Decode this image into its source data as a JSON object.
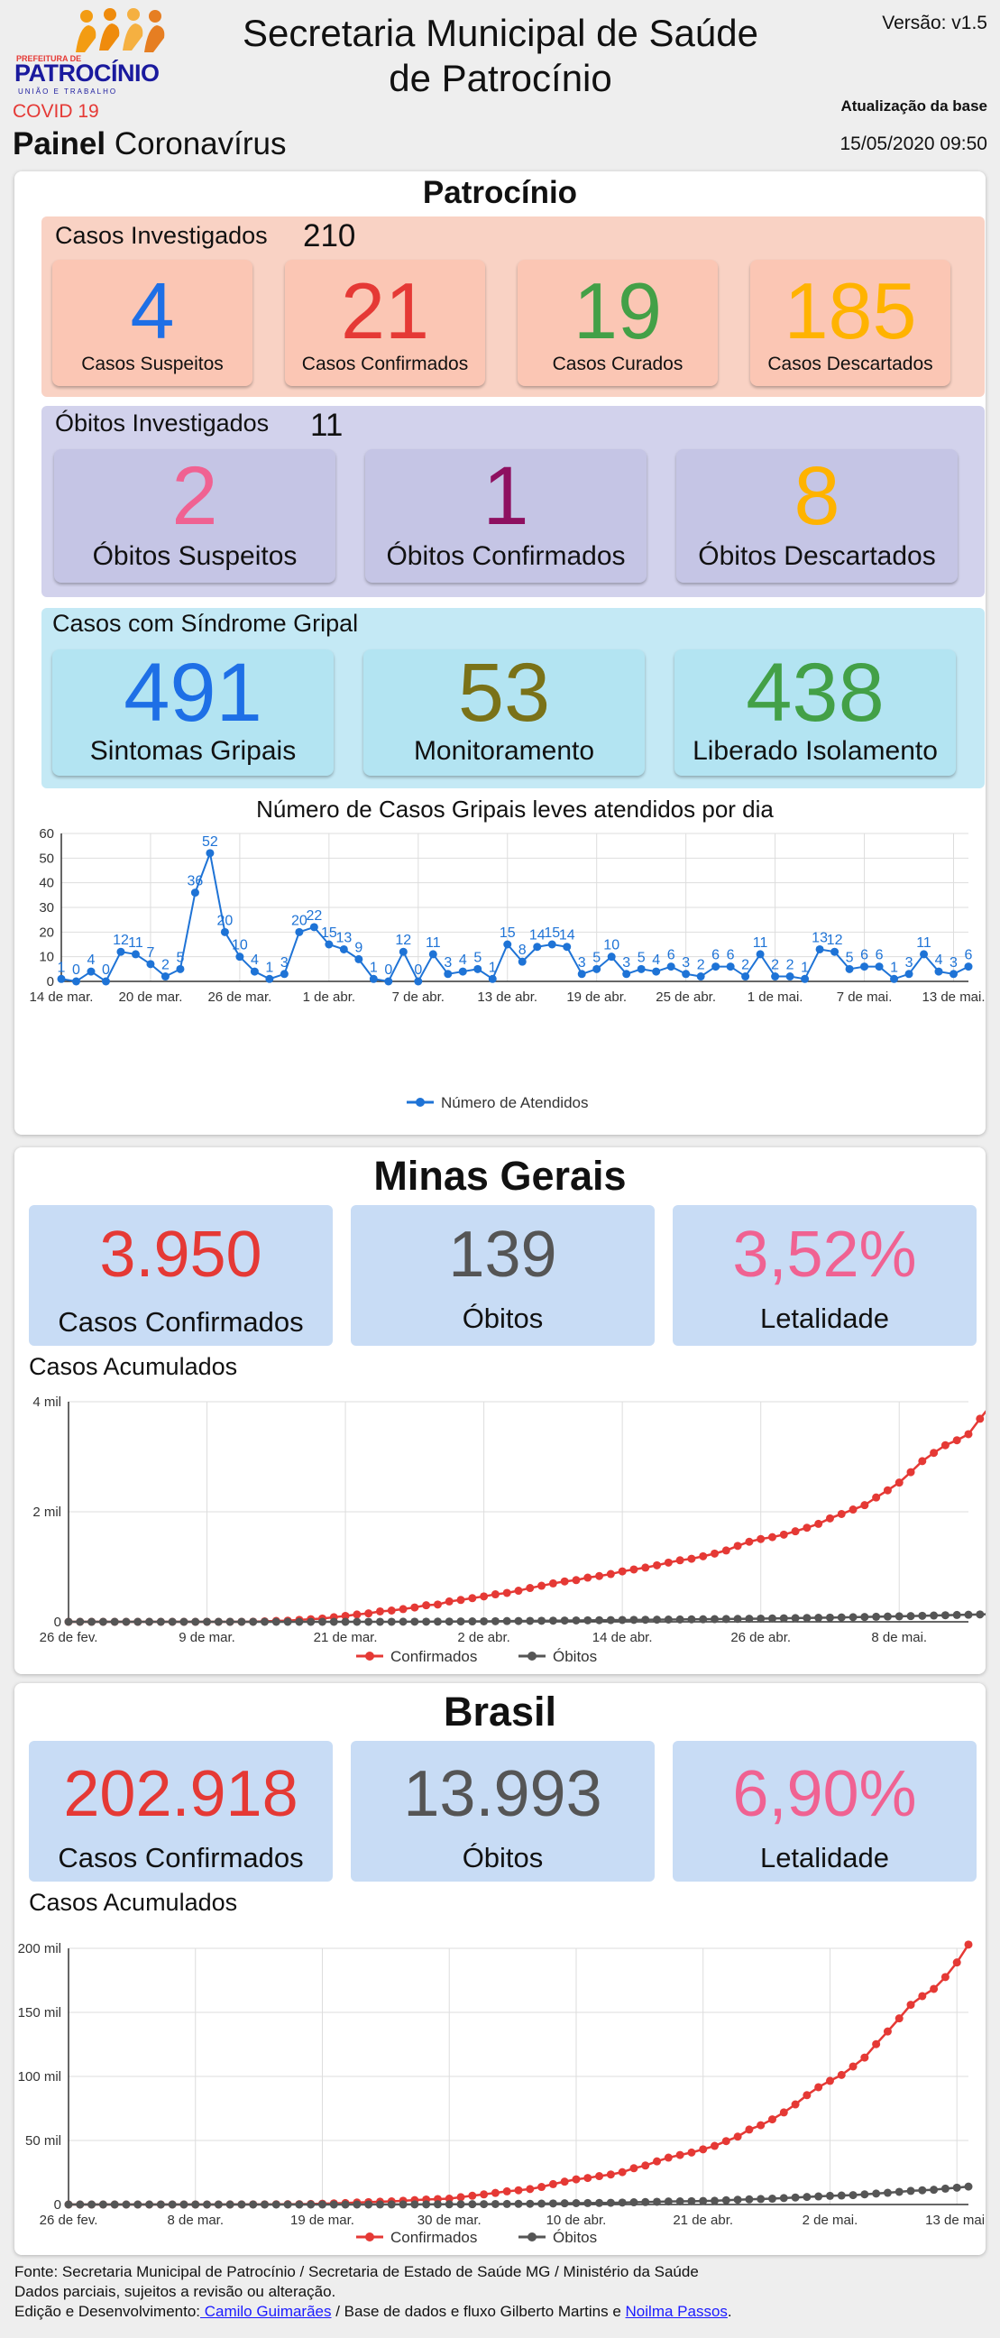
{
  "header": {
    "logo_prefix": "PREFEITURA DE",
    "logo_name": "PATROCÍNIO",
    "logo_tagline": "UNIÃO E TRABALHO",
    "covid_tag": "COVID 19",
    "painel_bold": "Painel",
    "painel_rest": " Coronavírus",
    "title_line1": "Secretaria Municipal de Saúde",
    "title_line2": "de Patrocínio",
    "version": "Versão: v1.5",
    "update_label": "Atualização da base",
    "update_datetime": "15/05/2020 09:50"
  },
  "patrocinio": {
    "title": "Patrocínio",
    "casos": {
      "label": "Casos Investigados",
      "total": "210",
      "tiles": [
        {
          "value": "4",
          "label": "Casos Suspeitos",
          "color": "#1e6fe6"
        },
        {
          "value": "21",
          "label": "Casos Confirmados",
          "color": "#e53935"
        },
        {
          "value": "19",
          "label": "Casos Curados",
          "color": "#43a047"
        },
        {
          "value": "185",
          "label": "Casos Descartados",
          "color": "#ffb300"
        }
      ]
    },
    "obitos": {
      "label": "Óbitos Investigados",
      "total": "11",
      "tiles": [
        {
          "value": "2",
          "label": "Óbitos Suspeitos",
          "color": "#f06292"
        },
        {
          "value": "1",
          "label": "Óbitos Confirmados",
          "color": "#8e1060"
        },
        {
          "value": "8",
          "label": "Óbitos Descartados",
          "color": "#ffb300"
        }
      ]
    },
    "gripal": {
      "label": "Casos com Síndrome Gripal",
      "tiles": [
        {
          "value": "491",
          "label": "Sintomas Gripais",
          "color": "#1e6fe6"
        },
        {
          "value": "53",
          "label": "Monitoramento",
          "color": "#7a7218"
        },
        {
          "value": "438",
          "label": "Liberado Isolamento",
          "color": "#43a047"
        }
      ]
    }
  },
  "minas": {
    "title": "Minas Gerais",
    "kpis": [
      {
        "value": "3.950",
        "label": "Casos Confirmados",
        "color": "#e53935"
      },
      {
        "value": "139",
        "label": "Óbitos",
        "color": "#555555"
      },
      {
        "value": "3,52%",
        "label": "Letalidade",
        "color": "#f06292"
      }
    ],
    "section_label": "Casos Acumulados"
  },
  "brasil": {
    "title": "Brasil",
    "kpis": [
      {
        "value": "202.918",
        "label": "Casos Confirmados",
        "color": "#e53935"
      },
      {
        "value": "13.993",
        "label": "Óbitos",
        "color": "#555555"
      },
      {
        "value": "6,90%",
        "label": "Letalidade",
        "color": "#f06292"
      }
    ],
    "section_label": "Casos Acumulados"
  },
  "footer": {
    "line1": "Fonte: Secretaria Municipal de Patrocínio / Secretaria de Estado de Saúde MG / Ministério da Saúde",
    "line2": "Dados parciais, sujeitos a revisão ou alteração.",
    "line3_prefix": "Edição e Desenvolvimento:",
    "author1": " Camilo Guimarães",
    "line3_mid": " / Base de dados e fluxo Gilberto Martins e ",
    "author2": "Noilma Passos",
    "line3_end": "."
  },
  "chart_data": [
    {
      "type": "line",
      "title": "Número de Casos Gripais leves atendidos por dia",
      "legend_position": "bottom",
      "grid": true,
      "ylim": [
        0,
        60
      ],
      "y_ticks": [
        "0",
        "10",
        "20",
        "30",
        "40",
        "50",
        "60"
      ],
      "x_ticks": [
        "14 de mar.",
        "20 de mar.",
        "26 de mar.",
        "1 de abr.",
        "7 de abr.",
        "13 de abr.",
        "19 de abr.",
        "25 de abr.",
        "1 de mai.",
        "7 de mai.",
        "13 de mai."
      ],
      "x_start": "2020-03-14",
      "x_end": "2020-05-14",
      "series": [
        {
          "name": "Número de Atendidos",
          "color": "#1e73d6",
          "values": [
            1,
            0,
            4,
            0,
            12,
            11,
            7,
            2,
            5,
            36,
            52,
            20,
            10,
            4,
            1,
            3,
            20,
            22,
            15,
            13,
            9,
            1,
            0,
            12,
            0,
            11,
            3,
            4,
            5,
            1,
            15,
            8,
            14,
            15,
            14,
            3,
            5,
            10,
            3,
            5,
            4,
            6,
            3,
            2,
            6,
            6,
            2,
            11,
            2,
            2,
            1,
            13,
            12,
            5,
            6,
            6,
            1,
            3,
            11,
            4,
            3,
            6
          ]
        }
      ]
    },
    {
      "type": "line",
      "title": "",
      "legend_position": "bottom",
      "grid": true,
      "ylim": [
        0,
        4000
      ],
      "y_ticks": [
        "0",
        "2 mil",
        "4 mil"
      ],
      "x_ticks": [
        "26 de fev.",
        "9 de mar.",
        "21 de mar.",
        "2 de abr.",
        "14 de abr.",
        "26 de abr.",
        "8 de mai."
      ],
      "x_start": "2020-02-26",
      "x_end": "2020-05-14",
      "series": [
        {
          "name": "Confirmados",
          "color": "#e53935",
          "values": [
            0,
            0,
            0,
            0,
            0,
            0,
            0,
            0,
            0,
            0,
            0,
            0,
            0,
            0,
            1,
            1,
            3,
            8,
            16,
            21,
            35,
            48,
            60,
            83,
            107,
            133,
            153,
            189,
            205,
            231,
            261,
            301,
            314,
            370,
            397,
            430,
            462,
            499,
            525,
            565,
            614,
            655,
            698,
            734,
            758,
            803,
            832,
            868,
            917,
            951,
            985,
            1027,
            1076,
            1118,
            1146,
            1191,
            1240,
            1297,
            1380,
            1455,
            1505,
            1539,
            1585,
            1645,
            1710,
            1780,
            1880,
            1960,
            2040,
            2120,
            2260,
            2390,
            2530,
            2720,
            2920,
            3070,
            3210,
            3300,
            3410,
            3690,
            3950
          ]
        },
        {
          "name": "Óbitos",
          "color": "#555555",
          "values": [
            0,
            0,
            0,
            0,
            0,
            0,
            0,
            0,
            0,
            0,
            0,
            0,
            0,
            0,
            0,
            0,
            0,
            0,
            0,
            0,
            0,
            0,
            0,
            0,
            0,
            0,
            1,
            1,
            1,
            2,
            3,
            3,
            4,
            5,
            7,
            8,
            9,
            11,
            14,
            15,
            17,
            19,
            21,
            23,
            25,
            27,
            29,
            31,
            33,
            35,
            37,
            39,
            41,
            43,
            45,
            47,
            49,
            51,
            53,
            56,
            58,
            61,
            64,
            67,
            70,
            73,
            76,
            80,
            84,
            88,
            92,
            96,
            100,
            104,
            109,
            114,
            119,
            124,
            129,
            134,
            139
          ]
        }
      ]
    },
    {
      "type": "line",
      "title": "",
      "legend_position": "bottom",
      "grid": true,
      "ylim": [
        0,
        200000
      ],
      "y_ticks": [
        "0",
        "50 mil",
        "100 mil",
        "150 mil",
        "200 mil"
      ],
      "x_ticks": [
        "26 de fev.",
        "8 de mar.",
        "19 de mar.",
        "30 de mar.",
        "10 de abr.",
        "21 de abr.",
        "2 de mai.",
        "13 de mai."
      ],
      "x_start": "2020-02-26",
      "x_end": "2020-05-14",
      "series": [
        {
          "name": "Confirmados",
          "color": "#e53935",
          "values": [
            1,
            1,
            1,
            2,
            2,
            2,
            2,
            3,
            8,
            13,
            19,
            25,
            25,
            34,
            52,
            77,
            98,
            121,
            200,
            234,
            291,
            428,
            621,
            904,
            1128,
            1546,
            1891,
            2201,
            2433,
            2915,
            3417,
            3904,
            4256,
            4579,
            5717,
            6836,
            7910,
            9056,
            10278,
            11130,
            12056,
            13717,
            15927,
            17857,
            19638,
            20727,
            22169,
            23430,
            25262,
            28320,
            30425,
            33682,
            36599,
            38654,
            40581,
            43079,
            45757,
            49492,
            52995,
            58509,
            61888,
            66501,
            71886,
            78162,
            85380,
            91589,
            96559,
            101147,
            107780,
            114715,
            125218,
            135106,
            145328,
            155939,
            162699,
            168331,
            177589,
            188974,
            202918
          ]
        },
        {
          "name": "Óbitos",
          "color": "#555555",
          "values": [
            0,
            0,
            0,
            0,
            0,
            0,
            0,
            0,
            0,
            0,
            0,
            0,
            0,
            0,
            0,
            0,
            0,
            0,
            0,
            0,
            1,
            3,
            6,
            11,
            18,
            25,
            34,
            46,
            57,
            77,
            92,
            111,
            136,
            159,
            201,
            241,
            299,
            359,
            432,
            486,
            553,
            667,
            800,
            941,
            1056,
            1124,
            1223,
            1328,
            1532,
            1736,
            1924,
            2141,
            2347,
            2462,
            2587,
            2741,
            2906,
            3313,
            3704,
            4045,
            4271,
            4543,
            5017,
            5466,
            5901,
            6329,
            6750,
            7025,
            7321,
            7921,
            8536,
            9146,
            9897,
            10627,
            11123,
            11519,
            12400,
            13149,
            13993
          ]
        }
      ]
    }
  ]
}
